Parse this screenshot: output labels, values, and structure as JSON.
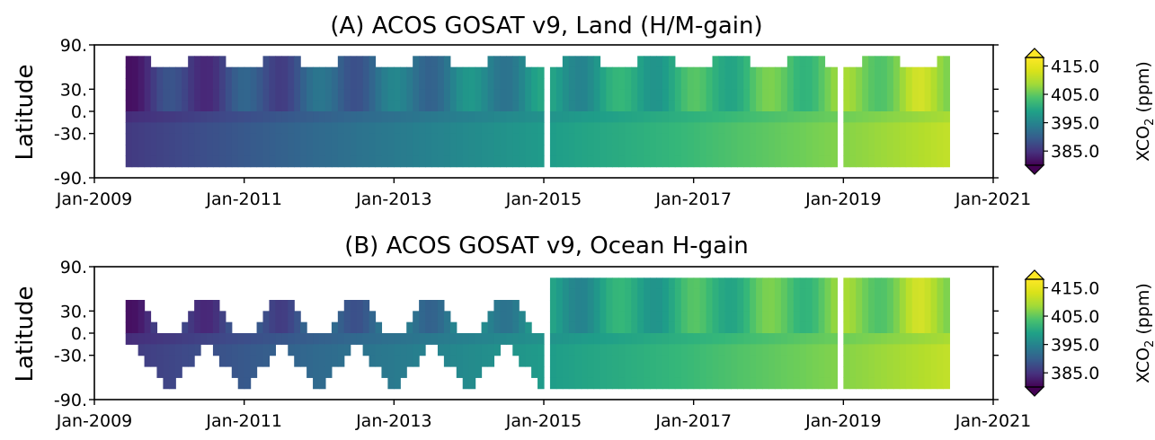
{
  "chart_data": [
    {
      "type": "heatmap",
      "title": "(A) ACOS GOSAT v9, Land (H/M-gain)",
      "ylabel": "Latitude",
      "xlim": [
        "Jan-2009",
        "Jan-2021"
      ],
      "ylim": [
        -90,
        90
      ],
      "x_tick_labels": [
        "Jan-2009",
        "Jan-2011",
        "Jan-2013",
        "Jan-2015",
        "Jan-2017",
        "Jan-2019",
        "Jan-2021"
      ],
      "y_tick_labels": [
        "90.",
        "30.",
        "0.",
        "-30.",
        "-90."
      ],
      "time_range": [
        "Jun-2009",
        "May-2020"
      ],
      "latitude_bands": [
        {
          "band": "30 to 90",
          "xco2_start": 384,
          "xco2_end": 414
        },
        {
          "band": "0 to 30",
          "xco2_start": 385,
          "xco2_end": 413
        },
        {
          "band": "-30 to 0",
          "xco2_start": 384,
          "xco2_end": 410
        },
        {
          "band": "-90 to -30",
          "xco2_start": 384,
          "xco2_end": 409
        }
      ],
      "data_gaps": [
        "Jan-2015",
        "Dec-2018"
      ],
      "colorbar": {
        "label": "XCO",
        "label_sub": "2",
        "label_unit": "(ppm)",
        "colormap": "viridis",
        "range": [
          380,
          418
        ],
        "ticks": [
          "415.0",
          "405.0",
          "395.0",
          "385.0"
        ],
        "extend": "both"
      }
    },
    {
      "type": "heatmap",
      "title": "(B) ACOS GOSAT v9, Ocean H-gain",
      "ylabel": "Latitude",
      "xlim": [
        "Jan-2009",
        "Jan-2021"
      ],
      "ylim": [
        -90,
        90
      ],
      "x_tick_labels": [
        "Jan-2009",
        "Jan-2011",
        "Jan-2013",
        "Jan-2015",
        "Jan-2017",
        "Jan-2019",
        "Jan-2021"
      ],
      "y_tick_labels": [
        "90.",
        "30.",
        "0.",
        "-30.",
        "-90."
      ],
      "time_range": [
        "Jun-2009",
        "May-2020"
      ],
      "xco2_range_ppm": [
        385,
        413
      ],
      "coverage": "seasonally varying latitude band (sub-solar); full latitude coverage from Jan-2015",
      "data_gaps": [
        "Jan-2015",
        "Dec-2018"
      ],
      "colorbar": {
        "label": "XCO",
        "label_sub": "2",
        "label_unit": "(ppm)",
        "colormap": "viridis",
        "range": [
          380,
          418
        ],
        "ticks": [
          "415.0",
          "405.0",
          "395.0",
          "385.0"
        ],
        "extend": "both"
      }
    }
  ]
}
